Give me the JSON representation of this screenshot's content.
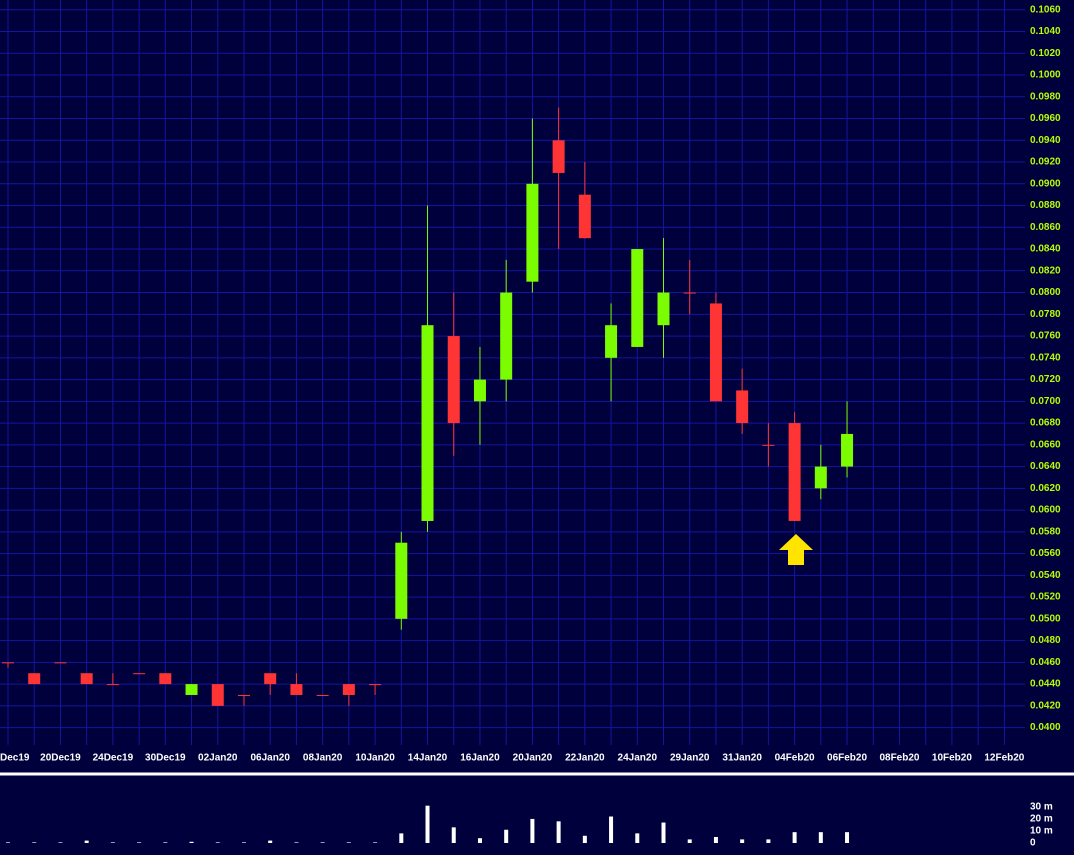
{
  "chart_data": [
    {
      "type": "candlestick",
      "categories": [
        "Dec19",
        null,
        "20Dec19",
        null,
        "24Dec19",
        null,
        "30Dec19",
        null,
        "02Jan20",
        null,
        "06Jan20",
        null,
        "08Jan20",
        null,
        "10Jan20",
        null,
        "14Jan20",
        null,
        "16Jan20",
        null,
        "20Jan20",
        null,
        "22Jan20",
        null,
        "24Jan20",
        null,
        "29Jan20",
        null,
        "31Jan20",
        null,
        "04Feb20",
        null,
        "06Feb20",
        null,
        "08Feb20",
        null,
        "10Feb20",
        null,
        "12Feb20"
      ],
      "open": [
        0.046,
        0.045,
        0.046,
        0.045,
        0.044,
        0.045,
        0.045,
        0.043,
        0.044,
        0.043,
        0.045,
        0.044,
        0.043,
        0.044,
        0.044,
        0.05,
        0.059,
        0.076,
        0.07,
        0.072,
        0.081,
        0.094,
        0.089,
        0.074,
        0.075,
        0.077,
        0.08,
        0.079,
        0.071,
        0.066,
        0.068,
        0.062,
        0.064,
        null,
        null,
        null,
        null,
        null,
        null
      ],
      "high": [
        0.046,
        0.045,
        0.046,
        0.045,
        0.045,
        0.045,
        0.045,
        0.044,
        0.044,
        0.043,
        0.045,
        0.045,
        0.043,
        0.044,
        0.044,
        0.058,
        0.088,
        0.08,
        0.075,
        0.083,
        0.096,
        0.097,
        0.092,
        0.079,
        0.084,
        0.085,
        0.083,
        0.08,
        0.073,
        0.068,
        0.069,
        0.066,
        0.07,
        null,
        null,
        null,
        null,
        null,
        null
      ],
      "low": [
        0.0455,
        0.044,
        0.046,
        0.044,
        0.044,
        0.045,
        0.044,
        0.043,
        0.042,
        0.042,
        0.043,
        0.043,
        0.043,
        0.042,
        0.043,
        0.049,
        0.058,
        0.065,
        0.066,
        0.07,
        0.08,
        0.084,
        0.085,
        0.07,
        0.075,
        0.074,
        0.078,
        0.07,
        0.067,
        0.064,
        0.059,
        0.061,
        0.063,
        null,
        null,
        null,
        null,
        null,
        null
      ],
      "close": [
        0.046,
        0.044,
        0.046,
        0.044,
        0.044,
        0.045,
        0.044,
        0.044,
        0.042,
        0.043,
        0.044,
        0.043,
        0.043,
        0.043,
        0.044,
        0.057,
        0.077,
        0.068,
        0.072,
        0.08,
        0.09,
        0.091,
        0.085,
        0.077,
        0.084,
        0.08,
        0.08,
        0.07,
        0.068,
        0.066,
        0.059,
        0.064,
        0.067,
        null,
        null,
        null,
        null,
        null,
        null
      ],
      "up_color": "#7cfc00",
      "down_color": "#ff3535",
      "ylim": [
        0.0384,
        0.1069
      ],
      "yticks": [
        {
          "value": 0.04,
          "label": "0.0400"
        },
        {
          "value": 0.042,
          "label": "0.0420"
        },
        {
          "value": 0.044,
          "label": "0.0440"
        },
        {
          "value": 0.046,
          "label": "0.0460"
        },
        {
          "value": 0.048,
          "label": "0.0480"
        },
        {
          "value": 0.05,
          "label": "0.0500"
        },
        {
          "value": 0.052,
          "label": "0.0520"
        },
        {
          "value": 0.054,
          "label": "0.0540"
        },
        {
          "value": 0.056,
          "label": "0.0560"
        },
        {
          "value": 0.058,
          "label": "0.0580"
        },
        {
          "value": 0.06,
          "label": "0.0600"
        },
        {
          "value": 0.062,
          "label": "0.0620"
        },
        {
          "value": 0.064,
          "label": "0.0640"
        },
        {
          "value": 0.066,
          "label": "0.0660"
        },
        {
          "value": 0.068,
          "label": "0.0680"
        },
        {
          "value": 0.07,
          "label": "0.0700"
        },
        {
          "value": 0.072,
          "label": "0.0720"
        },
        {
          "value": 0.074,
          "label": "0.0740"
        },
        {
          "value": 0.076,
          "label": "0.0760"
        },
        {
          "value": 0.078,
          "label": "0.0780"
        },
        {
          "value": 0.08,
          "label": "0.0800"
        },
        {
          "value": 0.082,
          "label": "0.0820"
        },
        {
          "value": 0.084,
          "label": "0.0840"
        },
        {
          "value": 0.086,
          "label": "0.0860"
        },
        {
          "value": 0.088,
          "label": "0.0880"
        },
        {
          "value": 0.09,
          "label": "0.0900"
        },
        {
          "value": 0.092,
          "label": "0.0920"
        },
        {
          "value": 0.094,
          "label": "0.0940"
        },
        {
          "value": 0.096,
          "label": "0.0960"
        },
        {
          "value": 0.098,
          "label": "0.0980"
        },
        {
          "value": 0.1,
          "label": "0.1000"
        },
        {
          "value": 0.102,
          "label": "0.1020"
        },
        {
          "value": 0.104,
          "label": "0.1040"
        },
        {
          "value": 0.106,
          "label": "0.1060"
        }
      ],
      "grid": true
    },
    {
      "type": "bar",
      "values": [
        0.5,
        0.5,
        0.5,
        2,
        0.5,
        0.5,
        0.5,
        1,
        0.5,
        0.5,
        2,
        0.5,
        0.5,
        0.5,
        0.5,
        8,
        31,
        13,
        4,
        11,
        20,
        18,
        6,
        22,
        8,
        17,
        3,
        5,
        3,
        3,
        9,
        9,
        9,
        null,
        null,
        null,
        null,
        null,
        null
      ],
      "color": "#ffffff",
      "ylim": [
        0,
        54
      ],
      "yticks": [
        0,
        {
          "value": 10,
          "label": "10 m"
        },
        {
          "value": 20,
          "label": "20 m"
        },
        {
          "value": 30,
          "label": "30 m"
        }
      ]
    }
  ]
}
